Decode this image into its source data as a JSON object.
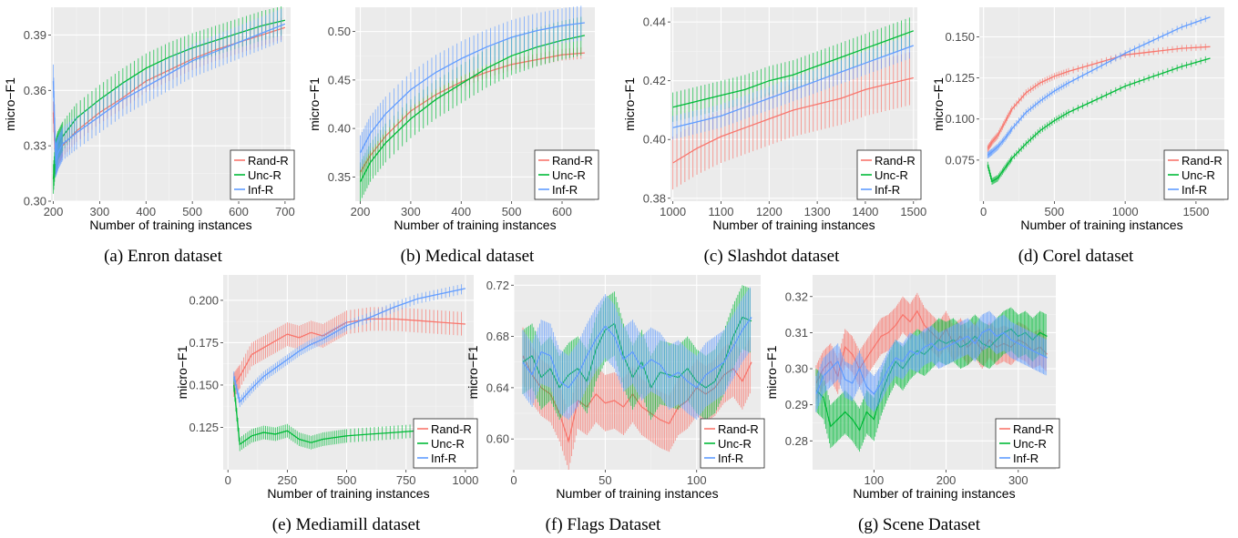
{
  "legend_colors": {
    "Rand-R": "#F8766D",
    "Unc-R": "#00BA38",
    "Inf-R": "#619CFF"
  },
  "panel_bg": "#EBEBEB",
  "chart_data": [
    {
      "type": "line",
      "caption": "(a) Enron dataset",
      "xlabel": "Number of training instances",
      "ylabel": "micro−F1",
      "xlim": [
        195,
        712
      ],
      "ylim": [
        0.3,
        0.405
      ],
      "x_ticks": [
        200,
        300,
        400,
        500,
        600,
        700
      ],
      "x_tick_labels": [
        "200",
        "300",
        "400",
        "500",
        "600",
        "700"
      ],
      "y_ticks": [
        0.3,
        0.33,
        0.36,
        0.39
      ],
      "y_tick_labels": [
        "0.30",
        "0.33",
        "0.36",
        "0.39"
      ],
      "grid": true,
      "legend_position": "bottom-right",
      "x": [
        200,
        205,
        210,
        220,
        250,
        300,
        350,
        400,
        450,
        500,
        550,
        600,
        650,
        700
      ],
      "series": [
        {
          "name": "Rand-R",
          "color": "#F8766D",
          "values": [
            0.348,
            0.32,
            0.325,
            0.33,
            0.338,
            0.348,
            0.356,
            0.365,
            0.371,
            0.377,
            0.382,
            0.386,
            0.39,
            0.394
          ],
          "err": 0.006
        },
        {
          "name": "Unc-R",
          "color": "#00BA38",
          "values": [
            0.312,
            0.325,
            0.33,
            0.335,
            0.345,
            0.355,
            0.364,
            0.372,
            0.378,
            0.383,
            0.387,
            0.391,
            0.395,
            0.398
          ],
          "err": 0.008
        },
        {
          "name": "Inf-R",
          "color": "#619CFF",
          "values": [
            0.365,
            0.322,
            0.326,
            0.331,
            0.337,
            0.346,
            0.355,
            0.362,
            0.369,
            0.376,
            0.381,
            0.386,
            0.391,
            0.396
          ],
          "err": 0.009
        }
      ]
    },
    {
      "type": "line",
      "caption": "(b) Medical dataset",
      "xlabel": "Number of training instances",
      "ylabel": "micro−F1",
      "xlim": [
        190,
        665
      ],
      "ylim": [
        0.325,
        0.525
      ],
      "x_ticks": [
        200,
        300,
        400,
        500,
        600
      ],
      "x_tick_labels": [
        "200",
        "300",
        "400",
        "500",
        "600"
      ],
      "y_ticks": [
        0.35,
        0.4,
        0.45,
        0.5
      ],
      "y_tick_labels": [
        "0.35",
        "0.40",
        "0.45",
        "0.50"
      ],
      "grid": true,
      "legend_position": "bottom-right",
      "x": [
        200,
        220,
        250,
        300,
        350,
        400,
        450,
        500,
        550,
        600,
        645
      ],
      "series": [
        {
          "name": "Rand-R",
          "color": "#F8766D",
          "values": [
            0.355,
            0.372,
            0.392,
            0.418,
            0.435,
            0.448,
            0.458,
            0.466,
            0.471,
            0.476,
            0.478
          ],
          "err": 0.006
        },
        {
          "name": "Unc-R",
          "color": "#00BA38",
          "values": [
            0.345,
            0.365,
            0.385,
            0.41,
            0.43,
            0.446,
            0.462,
            0.475,
            0.484,
            0.491,
            0.496
          ],
          "err": 0.02
        },
        {
          "name": "Inf-R",
          "color": "#619CFF",
          "values": [
            0.375,
            0.395,
            0.415,
            0.44,
            0.458,
            0.472,
            0.484,
            0.494,
            0.501,
            0.506,
            0.509
          ],
          "err": 0.018
        }
      ]
    },
    {
      "type": "line",
      "caption": "(c) Slashdot dataset",
      "xlabel": "Number of training instances",
      "ylabel": "micro−F1",
      "xlim": [
        995,
        1508
      ],
      "ylim": [
        0.379,
        0.445
      ],
      "x_ticks": [
        1000,
        1100,
        1200,
        1300,
        1400,
        1500
      ],
      "x_tick_labels": [
        "1000",
        "1100",
        "1200",
        "1300",
        "1400",
        "1500"
      ],
      "y_ticks": [
        0.38,
        0.4,
        0.42,
        0.44
      ],
      "y_tick_labels": [
        "0.38",
        "0.40",
        "0.42",
        "0.44"
      ],
      "grid": true,
      "legend_position": "bottom-right",
      "x": [
        1000,
        1050,
        1100,
        1150,
        1200,
        1250,
        1300,
        1350,
        1400,
        1450,
        1500
      ],
      "series": [
        {
          "name": "Rand-R",
          "color": "#F8766D",
          "values": [
            0.392,
            0.397,
            0.401,
            0.404,
            0.407,
            0.41,
            0.412,
            0.414,
            0.417,
            0.419,
            0.421
          ],
          "err": 0.009
        },
        {
          "name": "Unc-R",
          "color": "#00BA38",
          "values": [
            0.411,
            0.413,
            0.415,
            0.417,
            0.42,
            0.422,
            0.425,
            0.428,
            0.431,
            0.434,
            0.437
          ],
          "err": 0.005
        },
        {
          "name": "Inf-R",
          "color": "#619CFF",
          "values": [
            0.404,
            0.406,
            0.408,
            0.411,
            0.414,
            0.417,
            0.42,
            0.423,
            0.426,
            0.429,
            0.432
          ],
          "err": 0.004
        }
      ]
    },
    {
      "type": "line",
      "caption": "(d) Corel dataset",
      "xlabel": "Number of training instances",
      "ylabel": "micro−F1",
      "xlim": [
        -30,
        1700
      ],
      "ylim": [
        0.05,
        0.168
      ],
      "x_ticks": [
        0,
        500,
        1000,
        1500
      ],
      "x_tick_labels": [
        "0",
        "500",
        "1000",
        "1500"
      ],
      "y_ticks": [
        0.075,
        0.1,
        0.125,
        0.15
      ],
      "y_tick_labels": [
        "0.075",
        "0.100",
        "0.125",
        "0.150"
      ],
      "grid": true,
      "legend_position": "bottom-right",
      "x": [
        30,
        60,
        100,
        150,
        200,
        300,
        400,
        500,
        600,
        800,
        1000,
        1200,
        1400,
        1600
      ],
      "series": [
        {
          "name": "Rand-R",
          "color": "#F8766D",
          "values": [
            0.082,
            0.086,
            0.09,
            0.098,
            0.106,
            0.116,
            0.122,
            0.126,
            0.129,
            0.134,
            0.139,
            0.141,
            0.143,
            0.144
          ],
          "err": 0.002
        },
        {
          "name": "Unc-R",
          "color": "#00BA38",
          "values": [
            0.072,
            0.062,
            0.064,
            0.07,
            0.076,
            0.085,
            0.093,
            0.099,
            0.104,
            0.112,
            0.12,
            0.126,
            0.132,
            0.137
          ],
          "err": 0.002
        },
        {
          "name": "Inf-R",
          "color": "#619CFF",
          "values": [
            0.078,
            0.08,
            0.083,
            0.088,
            0.094,
            0.104,
            0.111,
            0.117,
            0.122,
            0.131,
            0.14,
            0.148,
            0.156,
            0.162
          ],
          "err": 0.002
        }
      ]
    },
    {
      "type": "line",
      "caption": "(e) Mediamill dataset",
      "xlabel": "Number of training instances",
      "ylabel": "micro−F1",
      "xlim": [
        -20,
        1035
      ],
      "ylim": [
        0.1,
        0.215
      ],
      "x_ticks": [
        0,
        250,
        500,
        750,
        1000
      ],
      "x_tick_labels": [
        "0",
        "250",
        "500",
        "750",
        "1000"
      ],
      "y_ticks": [
        0.125,
        0.15,
        0.175,
        0.2
      ],
      "y_tick_labels": [
        "0.125",
        "0.150",
        "0.175",
        "0.200"
      ],
      "grid": true,
      "legend_position": "bottom-right",
      "x": [
        25,
        50,
        100,
        150,
        200,
        250,
        300,
        350,
        400,
        450,
        500,
        600,
        700,
        800,
        900,
        1000
      ],
      "series": [
        {
          "name": "Rand-R",
          "color": "#F8766D",
          "values": [
            0.15,
            0.155,
            0.168,
            0.172,
            0.176,
            0.18,
            0.178,
            0.181,
            0.179,
            0.183,
            0.187,
            0.189,
            0.189,
            0.188,
            0.187,
            0.186
          ],
          "err": 0.007
        },
        {
          "name": "Unc-R",
          "color": "#00BA38",
          "values": [
            0.15,
            0.115,
            0.12,
            0.122,
            0.121,
            0.123,
            0.118,
            0.116,
            0.118,
            0.119,
            0.12,
            0.121,
            0.122,
            0.123,
            0.124,
            0.125
          ],
          "err": 0.004
        },
        {
          "name": "Inf-R",
          "color": "#619CFF",
          "values": [
            0.155,
            0.14,
            0.148,
            0.155,
            0.16,
            0.165,
            0.17,
            0.174,
            0.177,
            0.181,
            0.185,
            0.19,
            0.196,
            0.201,
            0.204,
            0.207
          ],
          "err": 0.003
        }
      ]
    },
    {
      "type": "line",
      "caption": "(f) Flags Dataset",
      "xlabel": "Number of training instances",
      "ylabel": "micro−F1",
      "xlim": [
        0,
        135
      ],
      "ylim": [
        0.576,
        0.728
      ],
      "x_ticks": [
        0,
        50,
        100
      ],
      "x_tick_labels": [
        "0",
        "50",
        "100"
      ],
      "y_ticks": [
        0.6,
        0.64,
        0.68,
        0.72
      ],
      "y_tick_labels": [
        "0.60",
        "0.64",
        "0.68",
        "0.72"
      ],
      "grid": true,
      "legend_position": "bottom-right",
      "x": [
        5,
        10,
        15,
        20,
        25,
        30,
        35,
        40,
        45,
        50,
        55,
        60,
        65,
        70,
        75,
        80,
        85,
        90,
        95,
        100,
        105,
        110,
        115,
        120,
        125,
        130
      ],
      "series": [
        {
          "name": "Rand-R",
          "color": "#F8766D",
          "values": [
            0.665,
            0.65,
            0.64,
            0.635,
            0.62,
            0.598,
            0.63,
            0.625,
            0.635,
            0.628,
            0.63,
            0.625,
            0.635,
            0.625,
            0.62,
            0.615,
            0.612,
            0.625,
            0.63,
            0.64,
            0.635,
            0.64,
            0.65,
            0.655,
            0.645,
            0.66
          ],
          "err": 0.022
        },
        {
          "name": "Unc-R",
          "color": "#00BA38",
          "values": [
            0.66,
            0.665,
            0.648,
            0.655,
            0.64,
            0.65,
            0.655,
            0.645,
            0.67,
            0.685,
            0.69,
            0.665,
            0.648,
            0.66,
            0.64,
            0.652,
            0.65,
            0.648,
            0.655,
            0.645,
            0.64,
            0.645,
            0.66,
            0.68,
            0.695,
            0.692
          ],
          "err": 0.025
        },
        {
          "name": "Inf-R",
          "color": "#619CFF",
          "values": [
            0.66,
            0.65,
            0.668,
            0.665,
            0.645,
            0.64,
            0.65,
            0.665,
            0.678,
            0.688,
            0.68,
            0.662,
            0.668,
            0.655,
            0.662,
            0.658,
            0.648,
            0.652,
            0.645,
            0.64,
            0.65,
            0.655,
            0.66,
            0.672,
            0.685,
            0.695
          ],
          "err": 0.025
        }
      ]
    },
    {
      "type": "line",
      "caption": "(g) Scene Dataset",
      "xlabel": "Number of training instances",
      "ylabel": "micro−F1",
      "xlim": [
        15,
        352
      ],
      "ylim": [
        0.272,
        0.326
      ],
      "x_ticks": [
        100,
        200,
        300
      ],
      "x_tick_labels": [
        "100",
        "200",
        "300"
      ],
      "y_ticks": [
        0.28,
        0.29,
        0.3,
        0.31,
        0.32
      ],
      "y_tick_labels": [
        "0.28",
        "0.29",
        "0.30",
        "0.31",
        "0.32"
      ],
      "grid": true,
      "legend_position": "bottom-right",
      "x": [
        20,
        30,
        40,
        50,
        60,
        70,
        80,
        90,
        100,
        110,
        120,
        130,
        140,
        150,
        160,
        170,
        180,
        190,
        200,
        210,
        220,
        230,
        240,
        250,
        260,
        270,
        280,
        290,
        300,
        310,
        320,
        330,
        340
      ],
      "series": [
        {
          "name": "Rand-R",
          "color": "#F8766D",
          "values": [
            0.296,
            0.3,
            0.302,
            0.298,
            0.306,
            0.304,
            0.3,
            0.303,
            0.306,
            0.309,
            0.31,
            0.312,
            0.315,
            0.313,
            0.316,
            0.312,
            0.31,
            0.308,
            0.311,
            0.307,
            0.309,
            0.306,
            0.308,
            0.305,
            0.308,
            0.306,
            0.307,
            0.306,
            0.308,
            0.307,
            0.305,
            0.306,
            0.304
          ],
          "err": 0.005
        },
        {
          "name": "Unc-R",
          "color": "#00BA38",
          "values": [
            0.294,
            0.292,
            0.284,
            0.286,
            0.288,
            0.286,
            0.283,
            0.288,
            0.286,
            0.293,
            0.298,
            0.302,
            0.3,
            0.303,
            0.305,
            0.304,
            0.306,
            0.308,
            0.307,
            0.308,
            0.306,
            0.307,
            0.309,
            0.307,
            0.306,
            0.308,
            0.31,
            0.311,
            0.309,
            0.31,
            0.308,
            0.31,
            0.309
          ],
          "err": 0.006
        },
        {
          "name": "Inf-R",
          "color": "#619CFF",
          "values": [
            0.293,
            0.298,
            0.3,
            0.302,
            0.297,
            0.296,
            0.3,
            0.295,
            0.293,
            0.296,
            0.3,
            0.303,
            0.302,
            0.305,
            0.304,
            0.306,
            0.307,
            0.305,
            0.306,
            0.307,
            0.308,
            0.309,
            0.307,
            0.31,
            0.311,
            0.309,
            0.31,
            0.308,
            0.307,
            0.306,
            0.305,
            0.304,
            0.303
          ],
          "err": 0.005
        }
      ]
    }
  ]
}
